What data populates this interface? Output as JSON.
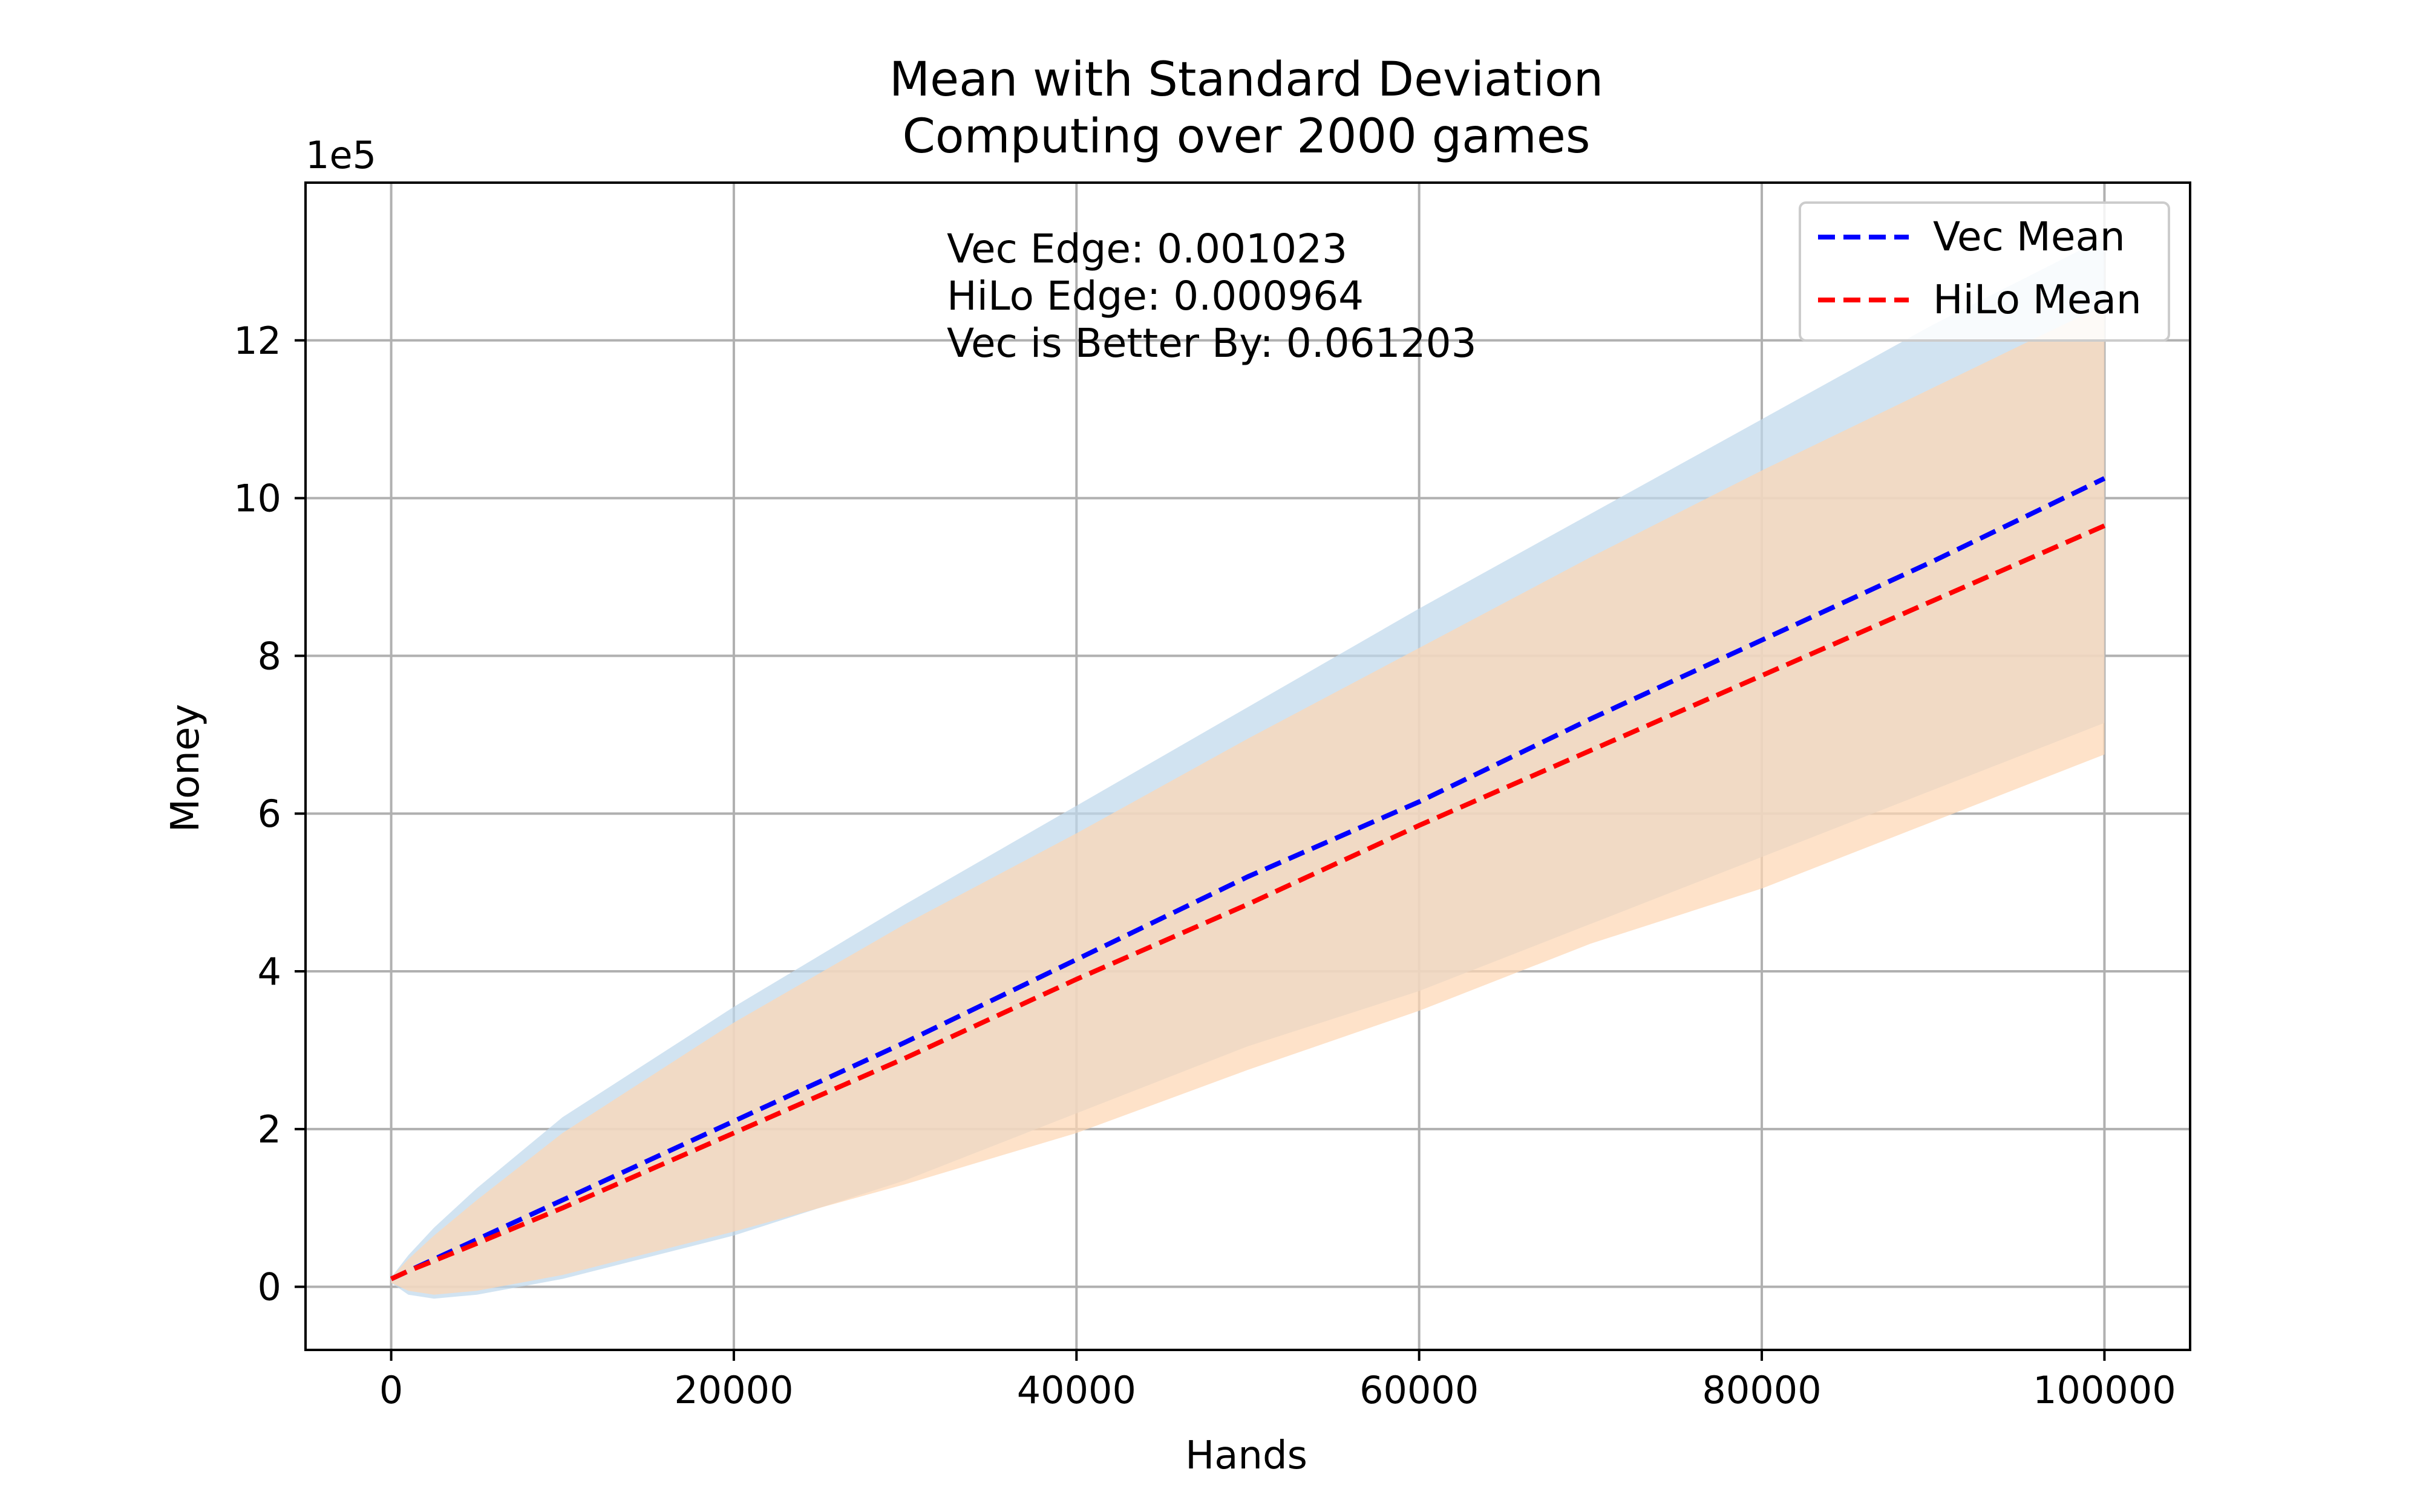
{
  "chart_data": {
    "type": "line",
    "title": "Mean with Standard Deviation",
    "subtitle": "Computing over 2000 games",
    "xlabel": "Hands",
    "ylabel": "Money",
    "y_offset_label": "1e5",
    "xlim": [
      -5000,
      105000
    ],
    "ylim": [
      -0.8,
      14
    ],
    "x_ticks": [
      0,
      20000,
      40000,
      60000,
      80000,
      100000
    ],
    "x_tick_labels": [
      "0",
      "20000",
      "40000",
      "60000",
      "80000",
      "100000"
    ],
    "y_ticks": [
      0,
      2,
      4,
      6,
      8,
      10,
      12
    ],
    "y_tick_labels": [
      "0",
      "2",
      "4",
      "6",
      "8",
      "10",
      "12"
    ],
    "grid": true,
    "legend_position": "top-right",
    "x": [
      0,
      1000,
      2500,
      5000,
      10000,
      20000,
      30000,
      40000,
      50000,
      60000,
      70000,
      80000,
      90000,
      100000
    ],
    "series": [
      {
        "name": "Vec Mean",
        "color": "#0000ff",
        "band_color": "#bfd8ec",
        "values": [
          0.1,
          0.2,
          0.35,
          0.6,
          1.1,
          2.1,
          3.1,
          4.15,
          5.2,
          6.15,
          7.2,
          8.2,
          9.2,
          10.25
        ],
        "upper": [
          0.12,
          0.4,
          0.75,
          1.25,
          2.15,
          3.55,
          4.85,
          6.1,
          7.35,
          8.6,
          9.8,
          11.0,
          12.2,
          13.3
        ],
        "lower": [
          0.05,
          -0.1,
          -0.15,
          -0.1,
          0.1,
          0.65,
          1.35,
          2.2,
          3.05,
          3.75,
          4.6,
          5.45,
          6.3,
          7.15
        ]
      },
      {
        "name": "HiLo Mean",
        "color": "#ff0000",
        "band_color": "#fdd7b4",
        "values": [
          0.1,
          0.2,
          0.33,
          0.55,
          1.0,
          1.95,
          2.9,
          3.9,
          4.85,
          5.85,
          6.8,
          7.75,
          8.7,
          9.65
        ],
        "upper": [
          0.12,
          0.35,
          0.65,
          1.1,
          1.95,
          3.35,
          4.6,
          5.75,
          6.95,
          8.1,
          9.25,
          10.35,
          11.4,
          12.45
        ],
        "lower": [
          0.05,
          -0.05,
          -0.1,
          -0.05,
          0.15,
          0.7,
          1.3,
          1.95,
          2.75,
          3.5,
          4.35,
          5.05,
          5.9,
          6.75
        ]
      }
    ],
    "annotations": [
      "Vec Edge: 0.001023",
      "HiLo Edge: 0.000964",
      "Vec is Better By: 0.061203"
    ]
  }
}
